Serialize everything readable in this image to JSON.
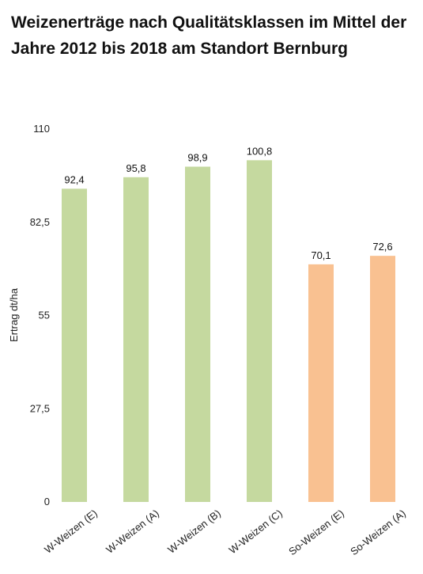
{
  "chart_data": {
    "type": "bar",
    "title": "Weizenerträge nach Qualitätsklassen im Mittel der Jahre 2012 bis 2018 am Standort Bernburg",
    "xlabel": "",
    "ylabel": "Ertrag dt/ha",
    "ylim": [
      0,
      110
    ],
    "yticks": [
      0,
      27.5,
      55,
      82.5,
      110
    ],
    "ytick_labels": [
      "0",
      "27,5",
      "55",
      "82,5",
      "110"
    ],
    "categories": [
      "W-Weizen (E)",
      "W-Weizen (A)",
      "W-Weizen (B)",
      "W-Weizen (C)",
      "So-Weizen (E)",
      "So-Weizen (A)"
    ],
    "values": [
      92.4,
      95.8,
      98.9,
      100.8,
      70.1,
      72.6
    ],
    "value_labels": [
      "92,4",
      "95,8",
      "98,9",
      "100,8",
      "70,1",
      "72,6"
    ],
    "bar_colors": [
      "#c5d99f",
      "#c5d99f",
      "#c5d99f",
      "#c5d99f",
      "#f9c191",
      "#f9c191"
    ],
    "grid": false,
    "legend": "none"
  }
}
